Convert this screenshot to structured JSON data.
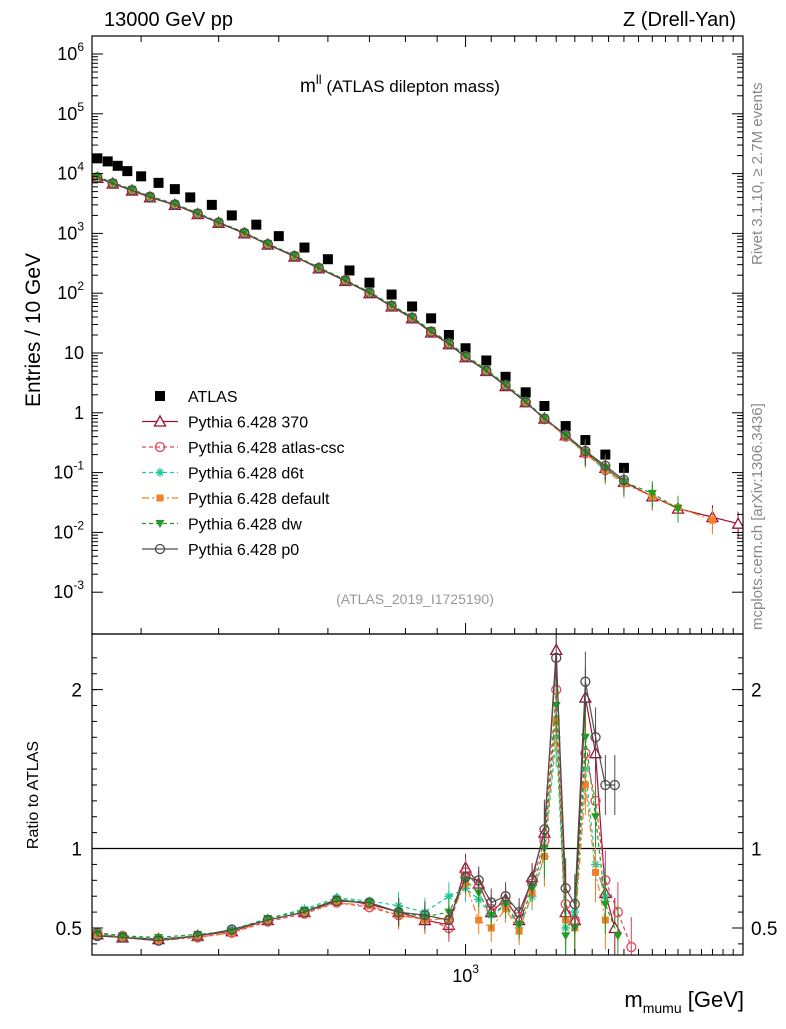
{
  "header": {
    "left": "13000 GeV pp",
    "right": "Z (Drell-Yan)"
  },
  "side_labels": {
    "rivet": "Rivet 3.1.10, ≥ 2.7M events",
    "mcplots": "mcplots.cern.ch [arXiv:1306.3436]"
  },
  "chart_data": [
    {
      "type": "line",
      "title_main": "m",
      "title_sup": "ll",
      "title_rest": " (ATLAS dilepton mass)",
      "watermark": "(ATLAS_2019_I1725190)",
      "ylabel": "Entries / 10 GeV",
      "yscale": "log",
      "ylim": [
        0.0002,
        2000000
      ],
      "xscale": "log",
      "xlim": [
        250,
        2800
      ],
      "ytick_exponents": [
        -3,
        -2,
        -1,
        0,
        1,
        2,
        3,
        4,
        5,
        6
      ],
      "ytick_plain": {
        "0": "1",
        "1": "10"
      },
      "legend_position": "lower-left",
      "series": [
        {
          "name": "ATLAS",
          "color": "#000000",
          "marker": "square",
          "x": [
            255,
            265,
            275,
            285,
            300,
            320,
            340,
            360,
            390,
            420,
            460,
            500,
            550,
            600,
            650,
            700,
            760,
            820,
            880,
            940,
            1000,
            1080,
            1160,
            1250,
            1340,
            1450,
            1560,
            1680,
            1800
          ],
          "y": [
            18000,
            16000,
            13500,
            11000,
            9000,
            7000,
            5500,
            4000,
            3000,
            2000,
            1400,
            900,
            580,
            370,
            240,
            150,
            95,
            60,
            38,
            20,
            12,
            7.5,
            4.0,
            2.2,
            1.3,
            0.6,
            0.35,
            0.2,
            0.12
          ]
        },
        {
          "name": "Pythia 6.428 370",
          "color": "#9e1230",
          "marker": "triangle-open",
          "x": [
            255,
            270,
            290,
            310,
            340,
            370,
            400,
            440,
            480,
            530,
            580,
            640,
            700,
            760,
            820,
            880,
            940,
            1000,
            1080,
            1160,
            1250,
            1340,
            1450,
            1560,
            1680,
            1800,
            2000,
            2200,
            2500,
            2750
          ],
          "y": [
            8500,
            6800,
            5200,
            4000,
            3000,
            2100,
            1500,
            1000,
            650,
            410,
            260,
            160,
            100,
            60,
            38,
            22,
            14,
            8.5,
            5.0,
            2.8,
            1.5,
            0.8,
            0.42,
            0.22,
            0.12,
            0.07,
            0.04,
            0.025,
            0.018,
            0.014
          ]
        },
        {
          "name": "Pythia 6.428 atlas-csc",
          "color": "#e8435e",
          "marker": "circle-open",
          "x": [
            255,
            270,
            290,
            310,
            340,
            370,
            400,
            440,
            480,
            530,
            580,
            640,
            700,
            760,
            820,
            880,
            940,
            1000,
            1080,
            1160,
            1250,
            1340,
            1450,
            1560,
            1680
          ],
          "y": [
            8700,
            6900,
            5300,
            4100,
            3050,
            2150,
            1520,
            1020,
            660,
            420,
            265,
            165,
            102,
            62,
            39,
            23,
            14.5,
            8.8,
            5.1,
            2.9,
            1.5,
            0.78,
            0.4,
            0.21,
            0.11
          ]
        },
        {
          "name": "Pythia 6.428 d6t",
          "color": "#1fc99a",
          "marker": "star",
          "x": [
            255,
            270,
            290,
            310,
            340,
            370,
            400,
            440,
            480,
            530,
            580,
            640,
            700,
            760,
            820,
            880,
            940,
            1000,
            1080,
            1160,
            1250,
            1340,
            1450,
            1560,
            1680,
            1800
          ],
          "y": [
            8900,
            7000,
            5400,
            4150,
            3100,
            2180,
            1540,
            1030,
            670,
            425,
            268,
            166,
            104,
            63,
            40,
            23.5,
            14.8,
            9.0,
            5.2,
            2.95,
            1.55,
            0.8,
            0.41,
            0.21,
            0.11,
            0.065
          ]
        },
        {
          "name": "Pythia 6.428 default",
          "color": "#f47f26",
          "marker": "square-filled",
          "x": [
            255,
            270,
            290,
            310,
            340,
            370,
            400,
            440,
            480,
            530,
            580,
            640,
            700,
            760,
            820,
            880,
            940,
            1000,
            1080,
            1160,
            1250,
            1340,
            1450,
            1560,
            1680,
            1800,
            2000,
            2200,
            2500
          ],
          "y": [
            8800,
            6950,
            5350,
            4120,
            3080,
            2160,
            1530,
            1025,
            665,
            422,
            266,
            165,
            103,
            62,
            39,
            23,
            14.6,
            8.9,
            5.1,
            2.9,
            1.5,
            0.79,
            0.4,
            0.21,
            0.11,
            0.065,
            0.04,
            0.026,
            0.016
          ]
        },
        {
          "name": "Pythia 6.428 dw",
          "color": "#1f9e1f",
          "marker": "triangle-down",
          "x": [
            255,
            270,
            290,
            310,
            340,
            370,
            400,
            440,
            480,
            530,
            580,
            640,
            700,
            760,
            820,
            880,
            940,
            1000,
            1080,
            1160,
            1250,
            1340,
            1450,
            1560,
            1680,
            1800,
            2000,
            2200
          ],
          "y": [
            9000,
            7100,
            5450,
            4200,
            3120,
            2200,
            1550,
            1040,
            675,
            428,
            270,
            168,
            105,
            64,
            40,
            23.8,
            15,
            9.1,
            5.3,
            3.0,
            1.58,
            0.82,
            0.42,
            0.22,
            0.12,
            0.07,
            0.045,
            0.025
          ]
        },
        {
          "name": "Pythia 6.428 p0",
          "color": "#4d4d4d",
          "marker": "circle-open",
          "x": [
            255,
            270,
            290,
            310,
            340,
            370,
            400,
            440,
            480,
            530,
            580,
            640,
            700,
            760,
            820,
            880,
            940,
            1000,
            1080,
            1160,
            1250,
            1340,
            1450,
            1560,
            1680,
            1800
          ],
          "y": [
            8600,
            6850,
            5250,
            4050,
            3020,
            2130,
            1510,
            1010,
            655,
            415,
            262,
            162,
            101,
            61,
            38.5,
            22.5,
            14.2,
            8.6,
            5.0,
            2.85,
            1.5,
            0.8,
            0.43,
            0.23,
            0.13,
            0.075
          ]
        }
      ]
    },
    {
      "type": "line",
      "ylabel": "Ratio to ATLAS",
      "xlabel_main": "m",
      "xlabel_sub": "mumu",
      "xlabel_rest": " [GeV]",
      "xscale": "log",
      "xlim": [
        250,
        2800
      ],
      "ylim": [
        0.33,
        2.35
      ],
      "yticks": [
        0.5,
        1,
        2
      ],
      "ytick_labels": [
        "0.5",
        "1",
        "2"
      ],
      "xticks": [
        1000
      ],
      "reference_line": 1,
      "series": [
        {
          "name": "Pythia 6.428 370",
          "color": "#9e1230",
          "marker": "triangle-open",
          "x": [
            255,
            280,
            320,
            370,
            420,
            480,
            550,
            620,
            700,
            780,
            860,
            940,
            1000,
            1050,
            1100,
            1160,
            1220,
            1280,
            1340,
            1400,
            1450,
            1500,
            1560,
            1620,
            1680,
            1740
          ],
          "y": [
            0.46,
            0.44,
            0.43,
            0.45,
            0.48,
            0.55,
            0.6,
            0.68,
            0.65,
            0.6,
            0.55,
            0.52,
            0.88,
            0.78,
            0.6,
            0.68,
            0.55,
            0.82,
            1.1,
            2.25,
            0.6,
            0.55,
            1.95,
            1.6,
            0.72,
            0.5
          ]
        },
        {
          "name": "Pythia 6.428 atlas-csc",
          "color": "#e8435e",
          "marker": "circle-open",
          "x": [
            255,
            280,
            320,
            370,
            420,
            480,
            550,
            620,
            700,
            780,
            860,
            940,
            1000,
            1050,
            1100,
            1160,
            1220,
            1280,
            1340,
            1400,
            1450,
            1500,
            1560,
            1620,
            1680,
            1760,
            1850
          ],
          "y": [
            0.47,
            0.45,
            0.43,
            0.44,
            0.47,
            0.54,
            0.59,
            0.66,
            0.63,
            0.58,
            0.56,
            0.5,
            0.85,
            0.76,
            0.62,
            0.66,
            0.57,
            0.78,
            1.05,
            2.0,
            0.65,
            0.55,
            1.6,
            1.3,
            0.8,
            0.6,
            0.38
          ]
        },
        {
          "name": "Pythia 6.428 d6t",
          "color": "#1fc99a",
          "marker": "star",
          "x": [
            255,
            280,
            320,
            370,
            420,
            480,
            550,
            620,
            700,
            780,
            860,
            940,
            1000,
            1050,
            1100,
            1160,
            1220,
            1280,
            1340,
            1400,
            1450,
            1500,
            1560,
            1620,
            1680
          ],
          "y": [
            0.46,
            0.45,
            0.43,
            0.45,
            0.49,
            0.56,
            0.62,
            0.69,
            0.67,
            0.64,
            0.6,
            0.7,
            0.75,
            0.68,
            0.58,
            0.64,
            0.5,
            0.7,
            0.95,
            1.7,
            0.5,
            0.6,
            1.5,
            0.9,
            0.7
          ]
        },
        {
          "name": "Pythia 6.428 default",
          "color": "#f47f26",
          "marker": "square-filled",
          "x": [
            255,
            280,
            320,
            370,
            420,
            480,
            550,
            620,
            700,
            780,
            860,
            940,
            1000,
            1050,
            1100,
            1160,
            1220,
            1280,
            1340,
            1400,
            1450,
            1500,
            1560,
            1620,
            1680
          ],
          "y": [
            0.46,
            0.44,
            0.42,
            0.44,
            0.47,
            0.55,
            0.6,
            0.66,
            0.64,
            0.58,
            0.55,
            0.56,
            0.78,
            0.55,
            0.5,
            0.62,
            0.48,
            0.72,
            0.95,
            1.8,
            0.55,
            0.5,
            1.4,
            0.85,
            0.55
          ]
        },
        {
          "name": "Pythia 6.428 dw",
          "color": "#1f9e1f",
          "marker": "triangle-down",
          "x": [
            255,
            280,
            320,
            370,
            420,
            480,
            550,
            620,
            700,
            780,
            860,
            940,
            1000,
            1050,
            1100,
            1160,
            1220,
            1280,
            1340,
            1400,
            1450,
            1500,
            1560,
            1620,
            1680,
            1760
          ],
          "y": [
            0.47,
            0.45,
            0.44,
            0.46,
            0.48,
            0.56,
            0.61,
            0.68,
            0.66,
            0.6,
            0.57,
            0.6,
            0.8,
            0.72,
            0.58,
            0.65,
            0.52,
            0.75,
            1.0,
            1.9,
            0.45,
            0.5,
            1.7,
            1.2,
            0.65,
            0.45
          ]
        },
        {
          "name": "Pythia 6.428 p0",
          "color": "#4d4d4d",
          "marker": "circle-open",
          "x": [
            255,
            280,
            320,
            370,
            420,
            480,
            550,
            620,
            700,
            780,
            860,
            940,
            1000,
            1050,
            1100,
            1160,
            1220,
            1280,
            1340,
            1400,
            1450,
            1500,
            1560,
            1620,
            1680,
            1740
          ],
          "y": [
            0.45,
            0.44,
            0.42,
            0.45,
            0.49,
            0.55,
            0.6,
            0.67,
            0.66,
            0.6,
            0.58,
            0.55,
            0.82,
            0.8,
            0.66,
            0.7,
            0.6,
            0.8,
            1.12,
            2.2,
            0.75,
            0.65,
            2.05,
            1.7,
            1.4,
            1.4
          ]
        }
      ]
    }
  ]
}
